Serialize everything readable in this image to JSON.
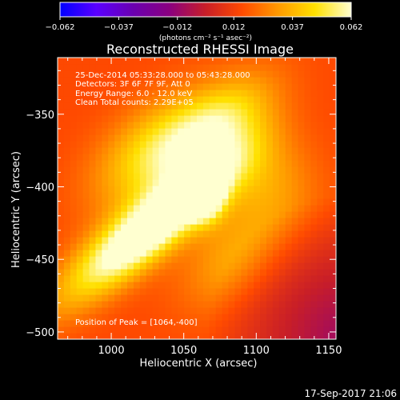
{
  "chart_data": {
    "type": "heatmap",
    "title": "Reconstructed RHESSI Image",
    "xlabel": "Heliocentric X (arcsec)",
    "ylabel": "Heliocentric Y (arcsec)",
    "xlim": [
      963,
      1155
    ],
    "ylim": [
      -505,
      -311
    ],
    "x_ticks": [
      {
        "value": 1000,
        "label": "1000"
      },
      {
        "value": 1050,
        "label": "1050"
      },
      {
        "value": 1100,
        "label": "1100"
      },
      {
        "value": 1150,
        "label": "1150"
      }
    ],
    "y_ticks": [
      {
        "value": -350,
        "label": "−350"
      },
      {
        "value": -400,
        "label": "−400"
      },
      {
        "value": -450,
        "label": "−450"
      },
      {
        "value": -500,
        "label": "−500"
      }
    ],
    "colorbar": {
      "range": [
        -0.062,
        0.062
      ],
      "ticks": [
        {
          "value": -0.062,
          "label": "−0.062"
        },
        {
          "value": -0.037,
          "label": "−0.037"
        },
        {
          "value": -0.012,
          "label": "−0.012"
        },
        {
          "value": 0.012,
          "label": "0.012"
        },
        {
          "value": 0.037,
          "label": "0.037"
        },
        {
          "value": 0.062,
          "label": "0.062"
        }
      ],
      "units": "(photons cm⁻² s⁻¹ asec⁻²)",
      "colormap": [
        "#0000ff",
        "#5a00ff",
        "#6a00b0",
        "#8a0080",
        "#c81e28",
        "#ff4a00",
        "#ff9a00",
        "#ffe000",
        "#ffffd0"
      ]
    },
    "annotations": [
      "25-Dec-2014 05:33:28.000 to 05:43:28.000",
      "Detectors: 3F 6F 7F 9F, Att 0",
      "Energy Range: 6.0 - 12.0 keV",
      "Clean     Total counts: 2.29E+05"
    ],
    "peak_annotation": "Position of Peak = [1064,-400]",
    "peak": {
      "x": 1064,
      "y": -400,
      "value": 0.062
    },
    "emission_model": {
      "description_values_in_data_units": true,
      "components": [
        {
          "x": 1064,
          "y": -400,
          "amp": 0.062,
          "sx": 9,
          "sy": 14
        },
        {
          "x": 1045,
          "y": -415,
          "amp": 0.038,
          "sx": 40,
          "sy": 12,
          "angle_deg": 40
        },
        {
          "x": 1010,
          "y": -440,
          "amp": 0.04,
          "sx": 45,
          "sy": 14,
          "angle_deg": 40
        },
        {
          "x": 1070,
          "y": -360,
          "amp": 0.03,
          "sx": 35,
          "sy": 16,
          "angle_deg": 40
        },
        {
          "x": 1030,
          "y": -375,
          "amp": 0.03,
          "sx": 35,
          "sy": 20,
          "angle_deg": 40
        },
        {
          "x": 1100,
          "y": -390,
          "amp": 0.02,
          "sx": 25,
          "sy": 30,
          "angle_deg": 40
        },
        {
          "x": 1085,
          "y": -450,
          "amp": 0.018,
          "sx": 30,
          "sy": 20,
          "angle_deg": 40
        }
      ],
      "background": 0.015,
      "limb_dim": {
        "x0": 1165,
        "y0": -505,
        "r": 100,
        "value": -0.012
      }
    }
  },
  "timestamp": "17-Sep-2017 21:06"
}
